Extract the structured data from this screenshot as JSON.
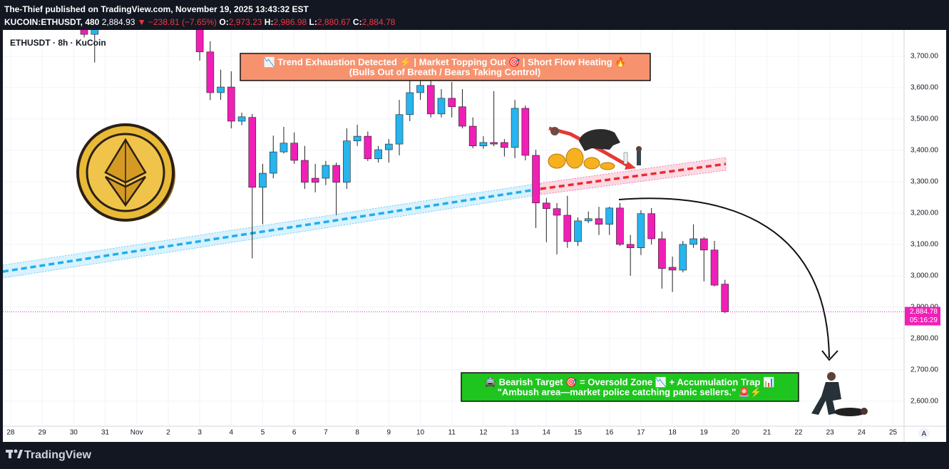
{
  "header": {
    "publisher": "The-Thief published on TradingView.com, November 19, 2025 13:43:32 EST",
    "symbol": "KUCOIN:ETHUSDT, 480",
    "last": "2,884.93",
    "change": "▼ −238.81 (−7.65%)",
    "ohlc": [
      {
        "label": "O:",
        "value": "2,973.23"
      },
      {
        "label": "H:",
        "value": "2,986.98"
      },
      {
        "label": "L:",
        "value": "2,880.67"
      },
      {
        "label": "C:",
        "value": "2,884.78"
      }
    ]
  },
  "chart_data": {
    "type": "candlestick",
    "legend_title": "ETHUSDT · 8h · KuCoin",
    "x": [
      7,
      8,
      18,
      19,
      20,
      21,
      22,
      23,
      24,
      25,
      26,
      27,
      28,
      29,
      30,
      31,
      32,
      33,
      34,
      35,
      36,
      37,
      38,
      39,
      40,
      41,
      42,
      43,
      44,
      45,
      46,
      47,
      48,
      49,
      50,
      51,
      52,
      53,
      54,
      55,
      56,
      57,
      58,
      59,
      60,
      61,
      62,
      63,
      64,
      65,
      66,
      67,
      68
    ],
    "open": [
      3800,
      3770,
      3790,
      3714,
      3584,
      3602,
      3493,
      3505,
      3282,
      3327,
      3395,
      3423,
      3368,
      3311,
      3311,
      3352,
      3298,
      3430,
      3445,
      3373,
      3402,
      3420,
      3514,
      3584,
      3607,
      3516,
      3566,
      3539,
      3477,
      3414,
      3425,
      3425,
      3409,
      3534,
      3384,
      3232,
      3214,
      3193,
      3109,
      3175,
      3182,
      3164,
      3216,
      3100,
      3089,
      3198,
      3118,
      3027,
      3018,
      3100,
      3118,
      3082,
      2973.23
    ],
    "high": [
      3820,
      3820,
      3800,
      3748,
      3657,
      3652,
      3520,
      3516,
      3357,
      3447,
      3475,
      3457,
      3414,
      3357,
      3366,
      3361,
      3470,
      3482,
      3460,
      3414,
      3436,
      3561,
      3625,
      3634,
      3630,
      3595,
      3618,
      3595,
      3505,
      3445,
      3589,
      3436,
      3561,
      3543,
      3402,
      3248,
      3232,
      3255,
      3186,
      3205,
      3220,
      3220,
      3232,
      3130,
      3209,
      3216,
      3141,
      3061,
      3111,
      3164,
      3123,
      3111,
      2986.98
    ],
    "low": [
      3760,
      3680,
      3686,
      3560,
      3561,
      3470,
      3480,
      3055,
      3164,
      3311,
      3390,
      3357,
      3277,
      3266,
      3289,
      3193,
      3277,
      3414,
      3366,
      3361,
      3361,
      3384,
      3493,
      3561,
      3505,
      3505,
      3505,
      3470,
      3407,
      3405,
      3413,
      3380,
      3375,
      3368,
      3152,
      3107,
      3068,
      3089,
      3095,
      3168,
      3130,
      3130,
      3095,
      3000,
      3066,
      3100,
      2959,
      2948,
      3011,
      3089,
      2982,
      2966,
      2880.67
    ],
    "close": [
      3770,
      3790,
      3714,
      3584,
      3602,
      3493,
      3507,
      3282,
      3327,
      3395,
      3423,
      3368,
      3298,
      3298,
      3352,
      3298,
      3430,
      3445,
      3373,
      3402,
      3420,
      3514,
      3584,
      3607,
      3516,
      3566,
      3539,
      3477,
      3414,
      3425,
      3420,
      3409,
      3534,
      3384,
      3232,
      3214,
      3193,
      3109,
      3175,
      3182,
      3164,
      3216,
      3100,
      3089,
      3198,
      3118,
      3023,
      3018,
      3100,
      3118,
      3082,
      2970,
      2884.78
    ],
    "up_color": "#26b5ef",
    "down_color": "#f01fb6",
    "ylim": [
      2520,
      3784
    ],
    "yticks": [
      {
        "value": 3700,
        "label": "3,700.00"
      },
      {
        "value": 3600,
        "label": "3,600.00"
      },
      {
        "value": 3500,
        "label": "3,500.00"
      },
      {
        "value": 3400,
        "label": "3,400.00"
      },
      {
        "value": 3300,
        "label": "3,300.00"
      },
      {
        "value": 3200,
        "label": "3,200.00"
      },
      {
        "value": 3100,
        "label": "3,100.00"
      },
      {
        "value": 3000,
        "label": "3,000.00"
      },
      {
        "value": 2900,
        "label": "2,900.00"
      },
      {
        "value": 2800,
        "label": "2,800.00"
      },
      {
        "value": 2700,
        "label": "2,700.00"
      },
      {
        "value": 2600,
        "label": "2,600.00"
      }
    ],
    "xlim": [
      -0.74,
      85.05
    ],
    "xticks": [
      {
        "value": 0,
        "label": "28"
      },
      {
        "value": 3,
        "label": "29"
      },
      {
        "value": 6,
        "label": "30"
      },
      {
        "value": 9,
        "label": "31"
      },
      {
        "value": 12,
        "label": "Nov"
      },
      {
        "value": 15,
        "label": "2"
      },
      {
        "value": 18,
        "label": "3"
      },
      {
        "value": 21,
        "label": "4"
      },
      {
        "value": 24,
        "label": "5"
      },
      {
        "value": 27,
        "label": "6"
      },
      {
        "value": 30,
        "label": "7"
      },
      {
        "value": 33,
        "label": "8"
      },
      {
        "value": 36,
        "label": "9"
      },
      {
        "value": 39,
        "label": "10"
      },
      {
        "value": 42,
        "label": "11"
      },
      {
        "value": 45,
        "label": "12"
      },
      {
        "value": 48,
        "label": "13"
      },
      {
        "value": 51,
        "label": "14"
      },
      {
        "value": 54,
        "label": "15"
      },
      {
        "value": 57,
        "label": "16"
      },
      {
        "value": 60,
        "label": "17"
      },
      {
        "value": 63,
        "label": "18"
      },
      {
        "value": 66,
        "label": "19"
      },
      {
        "value": 69,
        "label": "20"
      },
      {
        "value": 72,
        "label": "21"
      },
      {
        "value": 75,
        "label": "22"
      },
      {
        "value": 78,
        "label": "23"
      },
      {
        "value": 81,
        "label": "24"
      },
      {
        "value": 84,
        "label": "25"
      }
    ],
    "last_price": {
      "value": 2884.78,
      "label": "2,884.78"
    },
    "countdown": "05:16:29",
    "annotations": [
      {
        "lines": [
          "📉 Trend Exhaustion Detected ⚡ | Market Topping Out 🎯 | Short Flow Heating 🔥",
          "(Bulls Out of Breath / Bears Taking Control)"
        ]
      },
      {
        "lines": [
          "🚔 Bearish Target 🎯 = Oversold Zone 📉 + Accumulation Trap 📊",
          "\"Ambush area—market police catching panic sellers.\" 🚨⚡"
        ]
      }
    ]
  },
  "footer": {
    "brand": "TradingView",
    "scale_mode": "A"
  }
}
